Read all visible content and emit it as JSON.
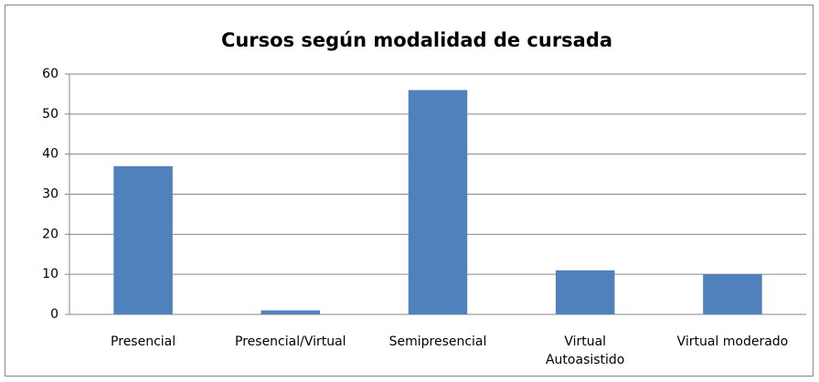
{
  "chart_data": {
    "type": "bar",
    "title": "Cursos según modalidad de cursada",
    "categories": [
      "Presencial",
      "Presencial/Virtual",
      "Semipresencial",
      "Virtual\nAutoasistido",
      "Virtual moderado"
    ],
    "values": [
      37,
      1,
      56,
      11,
      10
    ],
    "color": "#4f81bd",
    "ylim": [
      0,
      60
    ],
    "yticks": [
      0,
      10,
      20,
      30,
      40,
      50,
      60
    ],
    "grid": true
  }
}
